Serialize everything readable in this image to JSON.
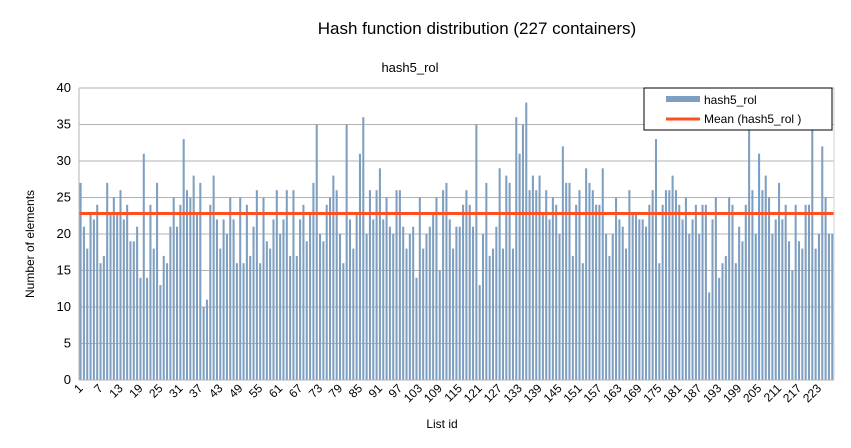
{
  "chart_data": {
    "type": "bar",
    "title": "Hash function distribution (227 containers)",
    "subtitle": "hash5_rol",
    "xlabel": "List id",
    "ylabel": "Number of elements",
    "ylim": [
      0,
      40
    ],
    "yticks": [
      0,
      5,
      10,
      15,
      20,
      25,
      30,
      35,
      40
    ],
    "grid": true,
    "legend_position": "top-right",
    "xtick_labels": [
      "1",
      "7",
      "13",
      "19",
      "25",
      "31",
      "37",
      "43",
      "49",
      "55",
      "61",
      "67",
      "73",
      "79",
      "85",
      "91",
      "97",
      "103",
      "109",
      "115",
      "121",
      "127",
      "133",
      "139",
      "145",
      "151",
      "157",
      "163",
      "169",
      "175",
      "181",
      "187",
      "193",
      "199",
      "205",
      "211",
      "217",
      "223"
    ],
    "categories_range": [
      1,
      227
    ],
    "series": [
      {
        "name": "hash5_rol",
        "color": "#7f9fc1",
        "values": [
          27,
          21,
          18,
          23,
          22,
          24,
          16,
          17,
          27,
          23,
          25,
          23,
          26,
          22,
          24,
          19,
          19,
          21,
          14,
          31,
          14,
          24,
          18,
          27,
          13,
          17,
          16,
          21,
          25,
          21,
          24,
          33,
          26,
          25,
          28,
          23,
          27,
          10,
          11,
          24,
          28,
          22,
          18,
          22,
          20,
          25,
          22,
          16,
          25,
          16,
          24,
          17,
          21,
          26,
          16,
          25,
          19,
          18,
          22,
          26,
          20,
          22,
          26,
          17,
          26,
          17,
          22,
          24,
          19,
          23,
          27,
          35,
          20,
          19,
          24,
          25,
          28,
          26,
          20,
          16,
          35,
          22,
          18,
          23,
          31,
          36,
          20,
          26,
          22,
          26,
          29,
          22,
          25,
          21,
          20,
          26,
          26,
          21,
          18,
          20,
          21,
          14,
          25,
          18,
          20,
          21,
          23,
          25,
          15,
          26,
          27,
          22,
          18,
          21,
          21,
          24,
          26,
          24,
          21,
          35,
          13,
          20,
          27,
          17,
          18,
          21,
          29,
          18,
          28,
          27,
          18,
          36,
          31,
          35,
          38,
          26,
          28,
          26,
          28,
          23,
          26,
          22,
          25,
          24,
          20,
          32,
          27,
          27,
          17,
          24,
          26,
          16,
          29,
          27,
          26,
          24,
          24,
          29,
          20,
          17,
          20,
          25,
          22,
          21,
          18,
          26,
          23,
          23,
          22,
          22,
          21,
          24,
          26,
          33,
          16,
          24,
          26,
          26,
          28,
          26,
          24,
          22,
          25,
          20,
          22,
          24,
          20,
          24,
          24,
          12,
          22,
          25,
          14,
          16,
          17,
          25,
          24,
          16,
          21,
          19,
          24,
          35,
          26,
          20,
          31,
          26,
          28,
          25,
          20,
          22,
          27,
          22,
          24,
          19,
          15,
          24,
          19,
          18,
          24,
          24,
          35,
          18,
          20,
          32,
          25,
          20,
          20
        ],
        "highlight": {
          "index": 204,
          "value": 35
        }
      },
      {
        "name": "Mean (hash5_rol )",
        "type": "line",
        "color": "#ff4f1f",
        "value": 22.8
      }
    ]
  },
  "legend": {
    "bar_label": "hash5_rol",
    "line_label": "Mean (hash5_rol )"
  }
}
